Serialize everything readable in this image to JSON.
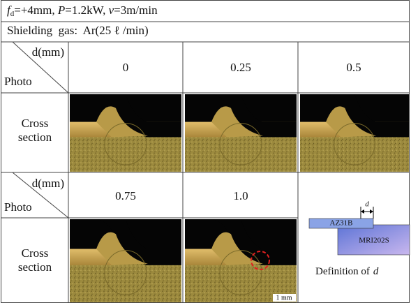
{
  "header": {
    "conditions": [
      "f",
      "d",
      "=+4mm,  ",
      "P",
      "=1.2kW,  ",
      "v",
      "=3m/min"
    ],
    "shielding_gas": "Shielding  gas:  Ar(25 ℓ /min)"
  },
  "table": {
    "rows": [
      {
        "d_label": "d(mm)",
        "photo_label": "Photo",
        "values": [
          "0",
          "0.25",
          "0.5"
        ],
        "row_label": [
          "Cross",
          "section"
        ]
      },
      {
        "d_label": "d(mm)",
        "photo_label": "Photo",
        "values": [
          "0.75",
          "1.0"
        ],
        "row_label": [
          "Cross",
          "section"
        ]
      }
    ]
  },
  "diagram": {
    "top": "AZ31B",
    "bottom": "MRI202S",
    "d": "d",
    "caption": "Definition of",
    "caption_var": "d"
  },
  "scale_bar": "1 mm"
}
